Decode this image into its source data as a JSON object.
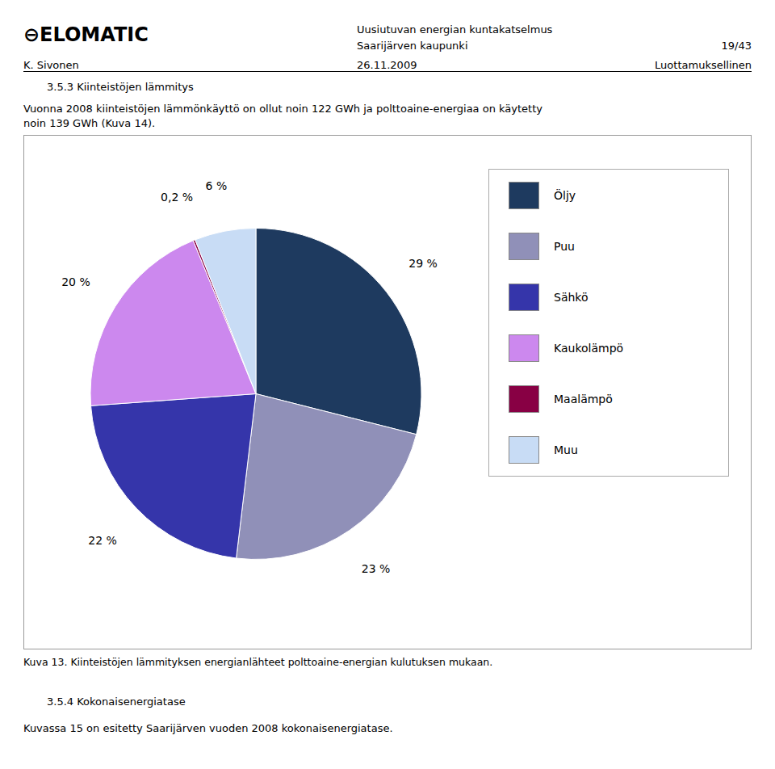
{
  "chart_data": {
    "type": "pie",
    "title": "Kuva 13.  Kiinteistöjen lämmityksen energianlähteet polttoaine-energian kulutuksen mukaan.",
    "categories": [
      "Öljy",
      "Puu",
      "Sähkö",
      "Kaukolämpö",
      "Maalämpö",
      "Muu"
    ],
    "values": [
      29,
      23,
      22,
      20,
      0.2,
      6
    ],
    "value_labels": [
      "29 %",
      "23 %",
      "22 %",
      "20 %",
      "0,2 %",
      "6 %"
    ],
    "colors": [
      "#1e3a5f",
      "#9090b8",
      "#3535aa",
      "#cc88ee",
      "#880044",
      "#c8dcf5"
    ],
    "data_labels": true,
    "legend": "right",
    "annotations": [
      "⊖ELOMATIC",
      "Uusiutuvan energian kuntakatselmus",
      "Saarijärven kaupunki",
      "19/43",
      "K. Sivonen",
      "26.11.2009",
      "Luottamuksellinen",
      "3.5.3 Kiinteistöjen lämmitys",
      "Vuonna 2008 kiinteistöjen lämmönkäyttö on ollut noin 122 GWh ja polttoaine-energiaa on käytetty",
      "noin 139 GWh (Kuva 14).",
      "3.5.4 Kokonaisenergiatase",
      "Kuvassa 15 on esitetty Saarijärven vuoden 2008 kokonaisenergiatase."
    ]
  }
}
